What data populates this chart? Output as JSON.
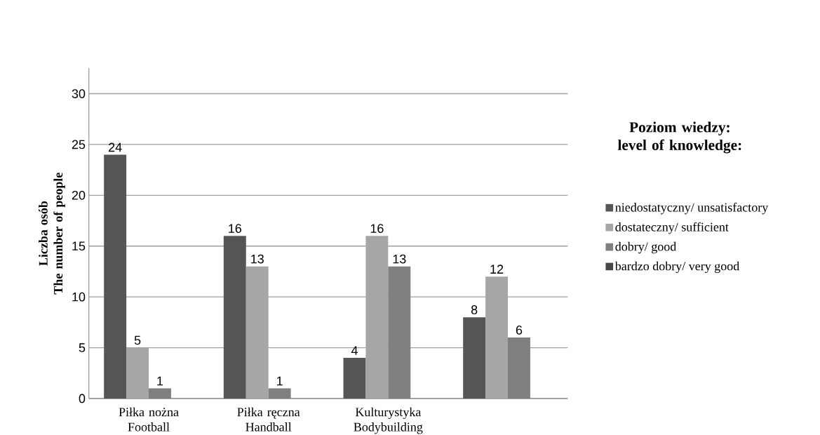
{
  "chart_data": {
    "type": "bar",
    "categories": [
      "Piłka nożna\nFootball",
      "Piłka ręczna\nHandball",
      "Kulturystyka\nBodybuilding",
      null
    ],
    "ylabel": "Liczba osób\nThe number of people",
    "legend_title": "Poziom wiedzy:\nlevel of knowledge:",
    "series": [
      {
        "name": "niedostatyczny/ unsatisfactory",
        "color": "#555555",
        "values": [
          24,
          16,
          4,
          8
        ],
        "value_labels": [
          "24",
          "16",
          "4",
          "8"
        ]
      },
      {
        "name": "dostateczny/ sufficient",
        "color": "#a6a6a6",
        "values": [
          5,
          13,
          16,
          12
        ],
        "value_labels": [
          "5",
          "13",
          "16",
          "12"
        ]
      },
      {
        "name": "dobry/ good",
        "color": "#7f7f7f",
        "values": [
          1,
          1,
          13,
          6
        ],
        "value_labels": [
          "1",
          "1",
          "13",
          "6"
        ]
      },
      {
        "name": "bardzo dobry/ very good",
        "color": "#474747",
        "values": [
          0,
          0,
          0,
          0
        ],
        "value_labels": [
          null,
          null,
          null,
          null
        ]
      }
    ],
    "ylim": [
      0,
      32.5
    ],
    "yticks": [
      0,
      5,
      10,
      15,
      20,
      25,
      30
    ],
    "grid": "y",
    "legend": "right"
  }
}
